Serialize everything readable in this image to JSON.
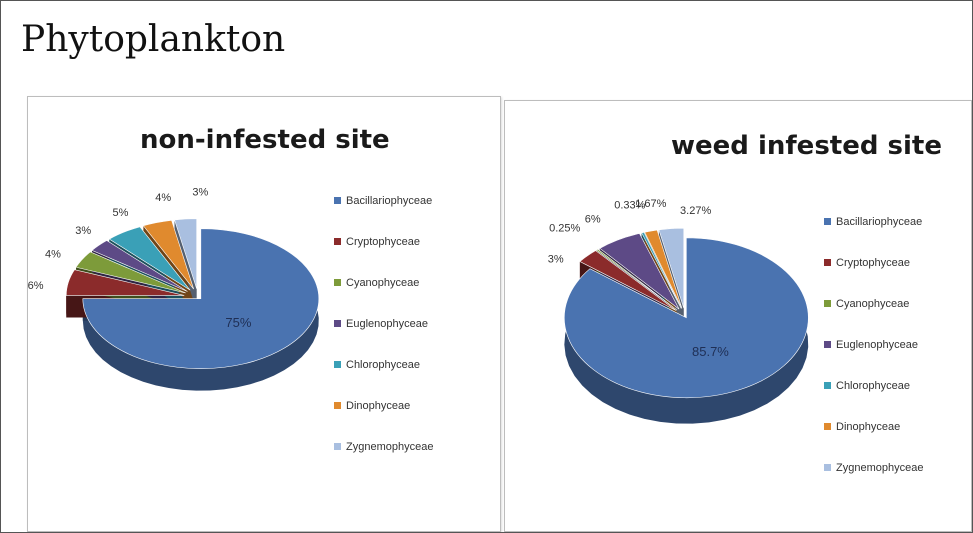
{
  "page": {
    "title": "Phytoplankton"
  },
  "chart_data": [
    {
      "type": "pie",
      "title": "non-infested site",
      "categories": [
        "Bacillariophyceae",
        "Cryptophyceae",
        "Cyanophyceae",
        "Euglenophyceae",
        "Chlorophyceae",
        "Dinophyceae",
        "Zygnemophyceae"
      ],
      "values": [
        75,
        6,
        4,
        3,
        5,
        4,
        3
      ],
      "data_labels": [
        "75%",
        "6%",
        "4%",
        "3%",
        "5%",
        "4%",
        "3%"
      ],
      "colors": [
        "#4a73b0",
        "#8b2b2b",
        "#7d9b3a",
        "#5d4a86",
        "#3aa0b7",
        "#e08a2e",
        "#a9bfe0"
      ],
      "legend_position": "right",
      "style": "3d-exploded"
    },
    {
      "type": "pie",
      "title": "weed infested site",
      "categories": [
        "Bacillariophyceae",
        "Cryptophyceae",
        "Cyanophyceae",
        "Euglenophyceae",
        "Chlorophyceae",
        "Dinophyceae",
        "Zygnemophyceae"
      ],
      "values": [
        85.7,
        3,
        0.25,
        6,
        0.33,
        1.67,
        3.27
      ],
      "data_labels": [
        "85.7%",
        "3%",
        "0.25%",
        "6%",
        "0.33%",
        "1.67%",
        "3.27%"
      ],
      "colors": [
        "#4a73b0",
        "#8b2b2b",
        "#7d9b3a",
        "#5d4a86",
        "#3aa0b7",
        "#e08a2e",
        "#a9bfe0"
      ],
      "legend_position": "right",
      "style": "3d-exploded"
    }
  ]
}
